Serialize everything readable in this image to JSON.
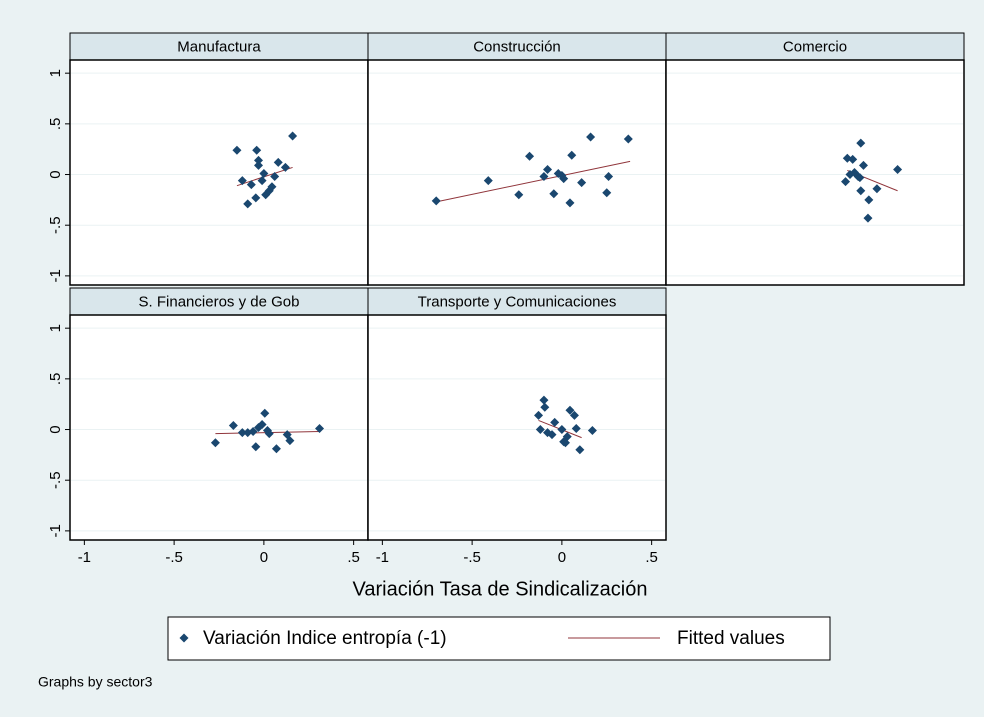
{
  "chart_data": [
    {
      "type": "scatter",
      "title": "Manufactura",
      "scatter": {
        "x": [
          -0.15,
          -0.04,
          0.16,
          -0.12,
          -0.09,
          -0.045,
          -0.03,
          -0.03,
          -0.07,
          -0.01,
          0.01,
          0.03,
          0.045,
          0.06,
          0.08,
          0.12,
          0
        ],
        "values": [
          0.24,
          0.24,
          0.38,
          -0.06,
          -0.29,
          -0.23,
          0.09,
          0.14,
          -0.1,
          -0.06,
          -0.2,
          -0.16,
          -0.12,
          -0.02,
          0.12,
          0.07,
          0.01
        ]
      },
      "fit": {
        "x": [
          -0.15,
          0.16
        ],
        "values": [
          -0.11,
          0.07
        ]
      }
    },
    {
      "type": "scatter",
      "title": "Construcción",
      "scatter": {
        "x": [
          -0.7,
          -0.41,
          -0.24,
          -0.18,
          -0.1,
          -0.08,
          -0.045,
          -0.02,
          0.01,
          0.045,
          0.055,
          0.11,
          0.16,
          0.25,
          0.26,
          0.37,
          0
        ],
        "values": [
          -0.26,
          -0.06,
          -0.2,
          0.18,
          -0.02,
          0.05,
          -0.19,
          0.01,
          -0.04,
          -0.28,
          0.19,
          -0.08,
          0.37,
          -0.18,
          -0.02,
          0.35,
          -0.01
        ]
      },
      "fit": {
        "x": [
          -0.7,
          0.38
        ],
        "values": [
          -0.27,
          0.13
        ]
      }
    },
    {
      "type": "scatter",
      "title": "Comercio",
      "scatter": {
        "x": [
          -0.07,
          -0.04,
          0.005,
          0.02,
          -0.03,
          -0.01,
          0,
          -0.08,
          0.005,
          0.05,
          0.095,
          0.21,
          0.045,
          -0.055
        ],
        "values": [
          0.16,
          0.15,
          0.31,
          0.09,
          0.02,
          -0.02,
          -0.03,
          -0.07,
          -0.16,
          -0.25,
          -0.14,
          0.05,
          -0.43,
          0
        ]
      },
      "fit": {
        "x": [
          -0.07,
          0.21
        ],
        "values": [
          0.04,
          -0.16
        ]
      }
    },
    {
      "type": "scatter",
      "title": "S. Financieros y de Gob",
      "scatter": {
        "x": [
          -0.27,
          -0.17,
          -0.12,
          -0.09,
          -0.06,
          -0.045,
          -0.03,
          -0.01,
          0.005,
          0.02,
          0.03,
          0.07,
          0.13,
          0.145,
          0.31
        ],
        "values": [
          -0.13,
          0.04,
          -0.03,
          -0.03,
          -0.02,
          -0.17,
          0.02,
          0.05,
          0.16,
          -0.01,
          -0.04,
          -0.19,
          -0.05,
          -0.11,
          0.01
        ]
      },
      "fit": {
        "x": [
          -0.27,
          0.31
        ],
        "values": [
          -0.04,
          -0.02
        ]
      }
    },
    {
      "type": "scatter",
      "title": "Transporte y Comunicaciones",
      "scatter": {
        "x": [
          -0.1,
          -0.095,
          -0.13,
          -0.12,
          -0.08,
          -0.055,
          -0.04,
          0,
          0.01,
          0.03,
          0.045,
          0.07,
          0.08,
          0.1,
          0.17,
          0.02
        ],
        "values": [
          0.29,
          0.22,
          0.14,
          0,
          -0.03,
          -0.05,
          0.07,
          0,
          -0.12,
          -0.07,
          0.19,
          0.14,
          0.01,
          -0.2,
          -0.01,
          -0.13
        ]
      },
      "fit": {
        "x": [
          -0.13,
          0.11
        ],
        "values": [
          0.09,
          -0.08
        ]
      }
    }
  ],
  "xlim": [
    -1.08,
    0.58
  ],
  "ylim": [
    -1.09,
    1.13
  ],
  "xticks": [
    -1,
    {
      "value": -0.5,
      "label": "-.5"
    },
    0,
    {
      "value": 0.5,
      "label": ".5"
    }
  ],
  "yticks": [
    -1,
    {
      "value": -0.5,
      "label": "-.5"
    },
    0,
    {
      "value": 0.5,
      "label": ".5"
    },
    1
  ],
  "x_label": "Variación Tasa de Sindicalización",
  "legend": [
    {
      "name": "Variación Indice entropía (-1)",
      "color": "#1a476f"
    },
    {
      "name": "Fitted values",
      "color": "#90353b"
    }
  ],
  "note": "Graphs by sector3"
}
